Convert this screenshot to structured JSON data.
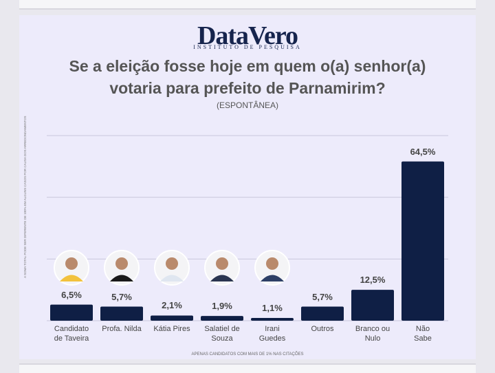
{
  "logo": "DataVero",
  "logo_subtitle": "INSTITUTO DE PESQUISA",
  "side_note": "A SOMA TOTAL PODE SER DIFERENTE DE 100% EM ALGUNS CASOS POR CAUSA DOS ARREDONDAMENTOS",
  "footnote": "APENAS CANDIDATOS COM MAIS DE 1% NAS CITAÇÕES",
  "chart_data": {
    "type": "bar",
    "title": "Se a eleição fosse hoje em quem o(a) senhor(a) votaria para prefeito de Parnamirim?",
    "subtitle": "(ESPONTÂNEA)",
    "categories": [
      "Candidato\nde Taveira",
      "Profa. Nilda",
      "Kátia Pires",
      "Salatiel de\nSouza",
      "Irani\nGuedes",
      "Outros",
      "Branco ou\nNulo",
      "Não\nSabe"
    ],
    "values": [
      6.5,
      5.7,
      2.1,
      1.9,
      1.1,
      5.7,
      12.5,
      64.5
    ],
    "value_labels": [
      "6,5%",
      "5,7%",
      "2,1%",
      "1,9%",
      "1,1%",
      "5,7%",
      "12,5%",
      "64,5%"
    ],
    "color": "#0f1f45",
    "ylim": [
      0,
      75
    ],
    "yticks": [
      0,
      25,
      50,
      75
    ],
    "grid": true
  }
}
